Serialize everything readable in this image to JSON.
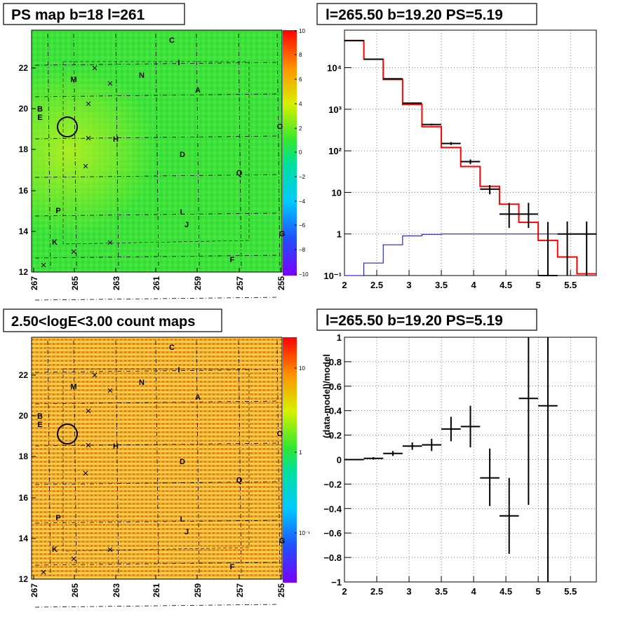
{
  "panels": {
    "map1": {
      "title": "PS map b=18 l=261",
      "colorbar": {
        "ticks": [
          "10",
          "8",
          "6",
          "4",
          "2",
          "0",
          "−2",
          "−4",
          "−6",
          "−8",
          "−10"
        ]
      }
    },
    "spec": {
      "title": "l=265.50 b=19.20 PS=5.19"
    },
    "map2": {
      "title": "2.50<logE<3.00 count maps",
      "colorbar": {
        "ticks": [
          "10",
          "1",
          "10⁻¹"
        ]
      }
    },
    "resid": {
      "title": "l=265.50 b=19.20 PS=5.19"
    }
  },
  "map_axes": {
    "x_ticks": [
      "267",
      "265",
      "263",
      "261",
      "259",
      "257",
      "255"
    ],
    "y_ticks": [
      "22",
      "20",
      "18",
      "16",
      "14",
      "12"
    ],
    "labels": [
      "C",
      "I",
      "N",
      "M",
      "A",
      "B",
      "E",
      "O",
      "H",
      "D",
      "Q",
      "P",
      "L",
      "J",
      "K",
      "F",
      "G"
    ]
  },
  "chart_data": [
    {
      "type": "line",
      "title": "l=265.50 b=19.20 PS=5.19",
      "x_scale": "linear",
      "y_scale": "log",
      "xlim": [
        2,
        5.9
      ],
      "ylim": [
        0.1,
        80000
      ],
      "x_ticks": [
        "2",
        "2.5",
        "3",
        "3.5",
        "4",
        "4.5",
        "5",
        "5.5"
      ],
      "y_ticks": [
        "10⁻¹",
        "1",
        "10",
        "10²",
        "10³",
        "10⁴"
      ],
      "grid": true,
      "series": [
        {
          "style": "step",
          "color": "#ff0000",
          "edges": [
            2.0,
            2.3,
            2.6,
            2.9,
            3.2,
            3.5,
            3.8,
            4.1,
            4.4,
            4.7,
            5.0,
            5.3,
            5.6,
            5.9
          ],
          "values": [
            45000,
            16000,
            5200,
            1300,
            380,
            120,
            42,
            14,
            5.2,
            1.9,
            0.7,
            0.28,
            0.11
          ]
        },
        {
          "style": "step",
          "color": "#0000cc",
          "edges": [
            2.0,
            2.3,
            2.6,
            2.9,
            3.2,
            3.5,
            3.8,
            4.1,
            4.4,
            4.7,
            5.0,
            5.3,
            5.6,
            5.9
          ],
          "values": [
            0.1,
            0.2,
            0.55,
            0.9,
            0.98,
            1.0,
            1.0,
            1.0,
            1.0,
            1.0,
            1.0,
            1.0,
            1.0
          ]
        },
        {
          "style": "errorbar",
          "color": "#000000",
          "x": [
            2.15,
            2.45,
            2.75,
            3.05,
            3.35,
            3.65,
            3.95,
            4.25,
            4.55,
            4.85,
            5.15,
            5.45,
            5.75
          ],
          "y": [
            45000,
            16000,
            5400,
            1400,
            430,
            150,
            55,
            12,
            3,
            3,
            0.05,
            1.0,
            1.0
          ],
          "yerr_low": [
            210,
            125,
            73,
            37,
            20,
            12,
            7,
            3,
            1.6,
            1.6,
            0.049,
            0.9,
            0.9
          ],
          "yerr_high": [
            210,
            125,
            73,
            37,
            20,
            12,
            7,
            3,
            2.6,
            2.6,
            1.9,
            1.0,
            1.0
          ]
        }
      ]
    },
    {
      "type": "scatter",
      "title": "l=265.50 b=19.20 PS=5.19",
      "ylabel": "(data-model)/model",
      "xlim": [
        2,
        5.9
      ],
      "ylim": [
        -1,
        1
      ],
      "x_ticks": [
        "2",
        "2.5",
        "3",
        "3.5",
        "4",
        "4.5",
        "5",
        "5.5"
      ],
      "y_ticks": [
        "1",
        "0.8",
        "0.6",
        "0.4",
        "0.2",
        "0",
        "−0.2",
        "−0.4",
        "−0.6",
        "−0.8",
        "−1"
      ],
      "grid": true,
      "points": [
        {
          "x": 2.15,
          "y": 0.0,
          "xerr": 0.15,
          "ylo": -0.005,
          "yhi": 0.005
        },
        {
          "x": 2.45,
          "y": 0.01,
          "xerr": 0.15,
          "ylo": 0.0,
          "yhi": 0.02
        },
        {
          "x": 2.75,
          "y": 0.05,
          "xerr": 0.15,
          "ylo": 0.03,
          "yhi": 0.07
        },
        {
          "x": 3.05,
          "y": 0.11,
          "xerr": 0.15,
          "ylo": 0.08,
          "yhi": 0.14
        },
        {
          "x": 3.35,
          "y": 0.12,
          "xerr": 0.15,
          "ylo": 0.07,
          "yhi": 0.17
        },
        {
          "x": 3.65,
          "y": 0.25,
          "xerr": 0.15,
          "ylo": 0.15,
          "yhi": 0.35
        },
        {
          "x": 3.95,
          "y": 0.27,
          "xerr": 0.15,
          "ylo": 0.1,
          "yhi": 0.44
        },
        {
          "x": 4.25,
          "y": -0.15,
          "xerr": 0.15,
          "ylo": -0.38,
          "yhi": 0.09
        },
        {
          "x": 4.55,
          "y": -0.46,
          "xerr": 0.15,
          "ylo": -0.77,
          "yhi": -0.15
        },
        {
          "x": 4.85,
          "y": 0.5,
          "xerr": 0.15,
          "ylo": -0.37,
          "yhi": 1.0
        },
        {
          "x": 5.15,
          "y": 0.44,
          "xerr": 0.15,
          "ylo": -1.0,
          "yhi": 1.0
        }
      ]
    }
  ]
}
